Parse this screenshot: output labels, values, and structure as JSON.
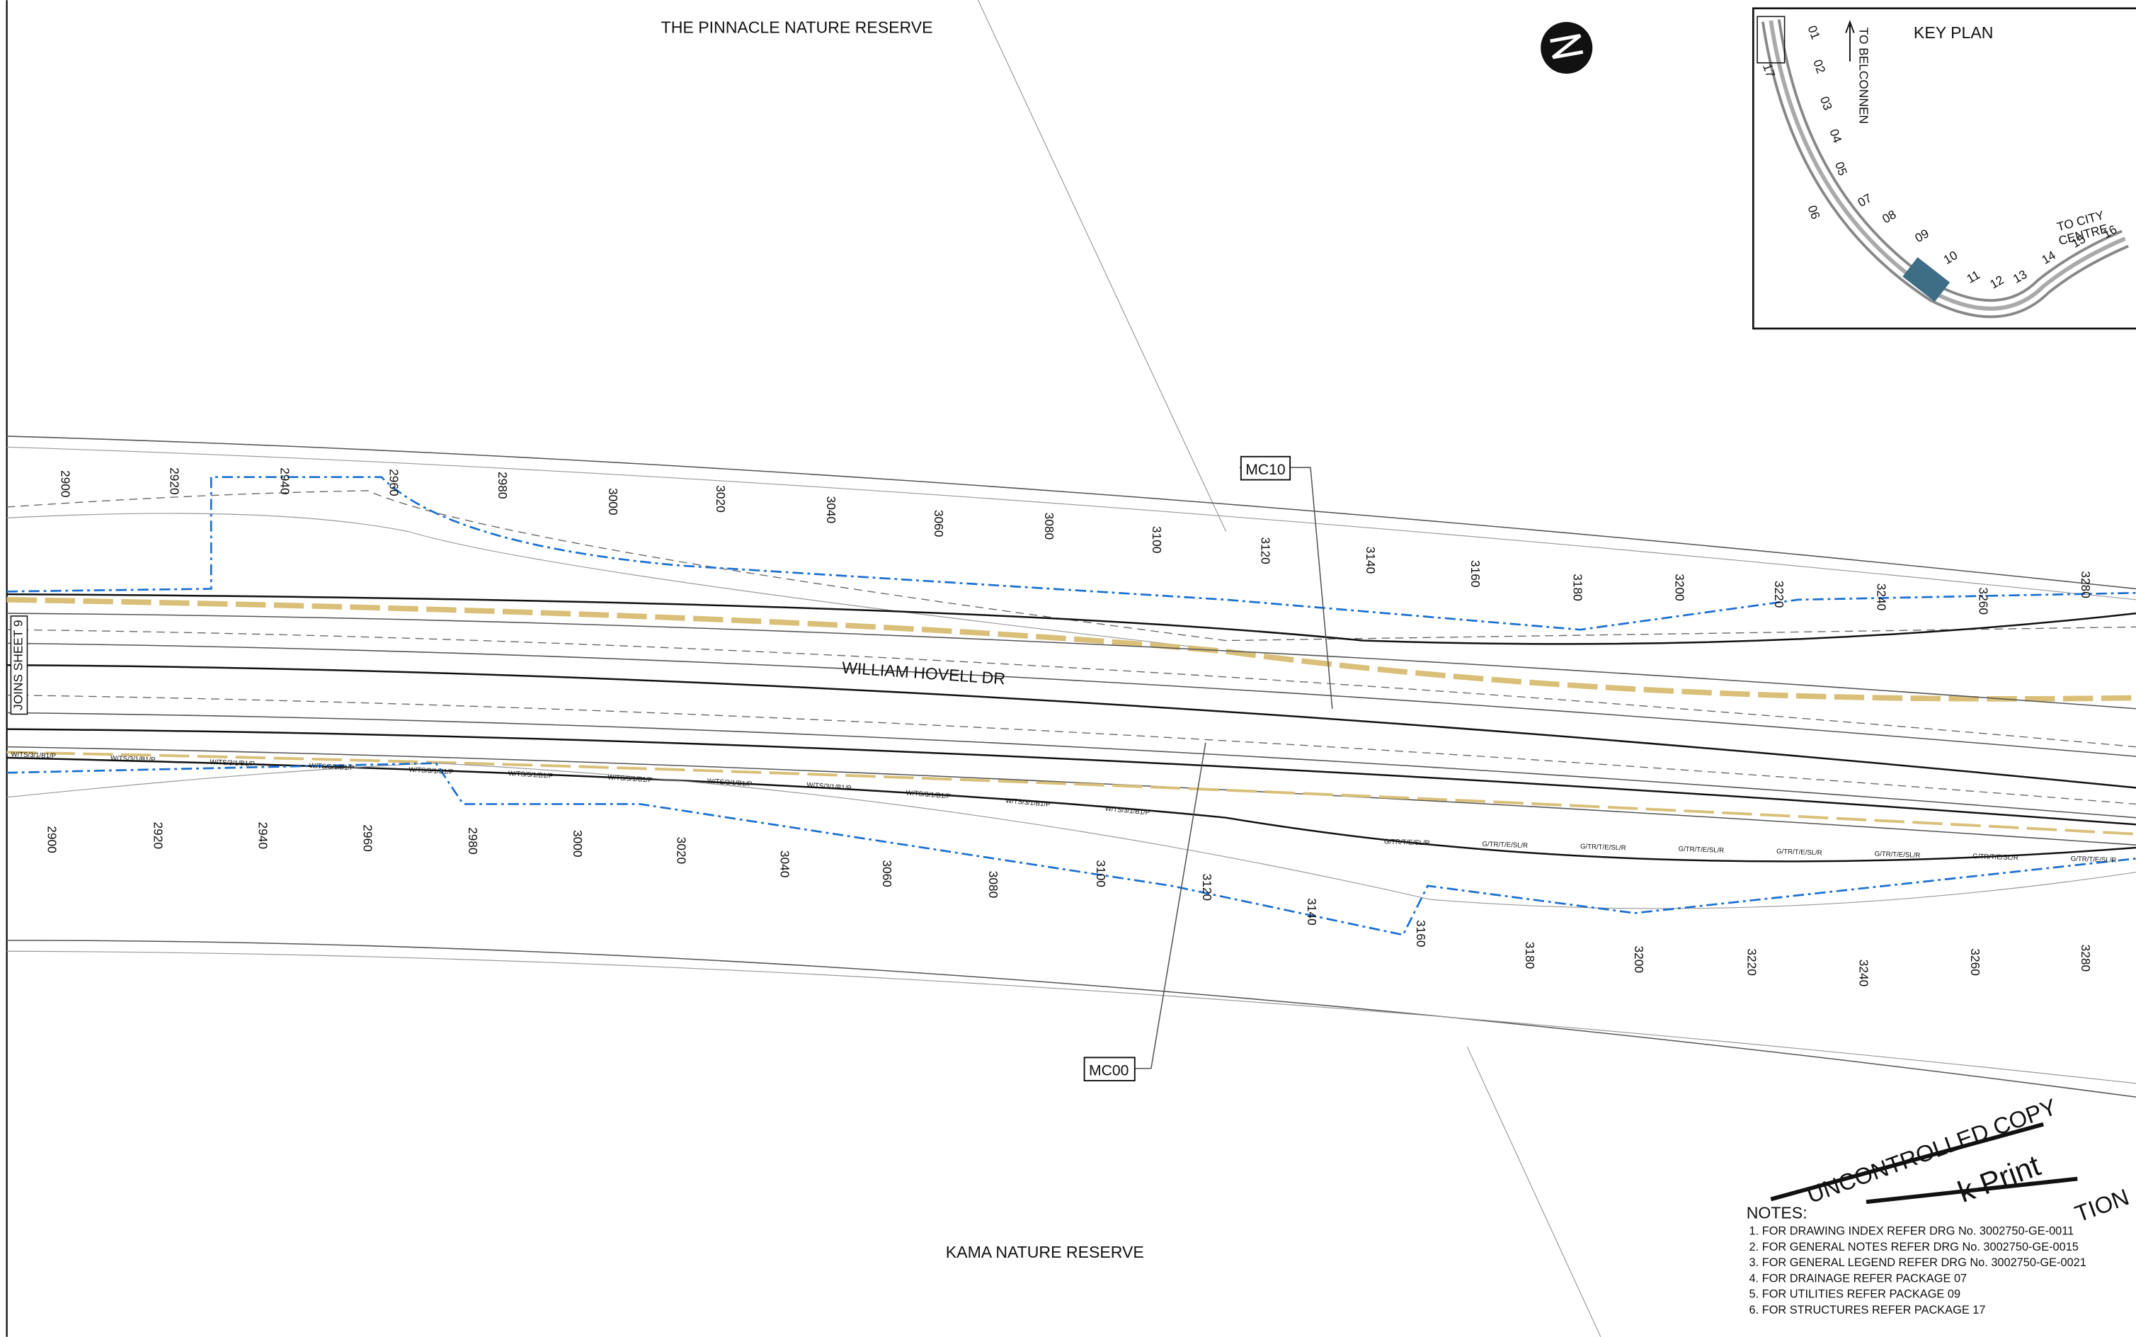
{
  "labels": {
    "reserve_north": "THE PINNACLE NATURE RESERVE",
    "reserve_south": "KAMA NATURE RESERVE",
    "road": "WILLIAM HOVELL DR",
    "match_line": "JOINS SHEET 9",
    "mc10": "MC10",
    "mc00": "MC00",
    "cable_upper": "W/TS/3/1/B1/P",
    "cable_lower": "G/TR/T/E/SL/R"
  },
  "chainages": {
    "upper": [
      2900,
      2920,
      2940,
      2960,
      2980,
      3000,
      3020,
      3040,
      3060,
      3080,
      3100,
      3120,
      3140,
      3160,
      3180,
      3200,
      3220,
      3240,
      3260,
      3280
    ],
    "lower": [
      2900,
      2920,
      2940,
      2960,
      2980,
      3000,
      3020,
      3040,
      3060,
      3080,
      3100,
      3120,
      3140,
      3160,
      3180,
      3200,
      3220,
      3240,
      3260,
      3280
    ]
  },
  "key_plan": {
    "title": "KEY PLAN",
    "to_north": "TO BELCONNEN",
    "to_east_1": "TO CITY",
    "to_east_2": "CENTRE",
    "sheets": [
      "01",
      "02",
      "03",
      "04",
      "05",
      "06",
      "07",
      "08",
      "09",
      "10",
      "11",
      "12",
      "13",
      "14",
      "15",
      "16",
      "17"
    ]
  },
  "notes": {
    "title": "NOTES:",
    "items": [
      "1.  FOR DRAWING INDEX REFER DRG No. 3002750-GE-0011",
      "2.  FOR GENERAL NOTES REFER DRG No. 3002750-GE-0015",
      "3.  FOR GENERAL LEGEND REFER DRG No. 3002750-GE-0021",
      "4.  FOR DRAINAGE REFER PACKAGE 07",
      "5.  FOR UTILITIES REFER PACKAGE 09",
      "6.  FOR STRUCTURES REFER PACKAGE 17"
    ]
  },
  "stamp": {
    "line1": "UNCONTROLLED COPY",
    "line2": "k Print",
    "line3": "TION"
  }
}
